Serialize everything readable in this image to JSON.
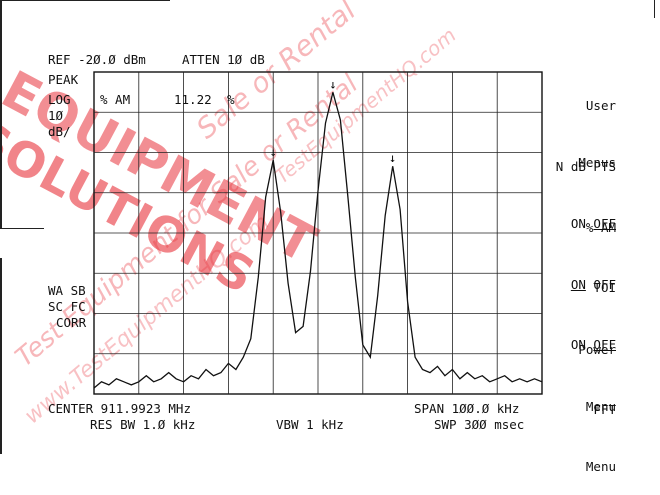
{
  "header": {
    "ref_level": "REF -2Ø.Ø dBm",
    "atten": "ATTEN 1Ø dB",
    "detector": "PEAK",
    "scale_lines": [
      "LOG",
      "1Ø",
      "dB/"
    ]
  },
  "marker_readout": {
    "label": "% AM",
    "value": "11.22",
    "unit": "%"
  },
  "left_annotations": {
    "line1": "WA SB",
    "line2": "SC FC",
    "line3": "CORR"
  },
  "footer": {
    "center": "CENTER 911.9923 MHz",
    "res_bw": "RES BW 1.Ø kHz",
    "vbw": "VBW 1 kHz",
    "span": "SPAN 1ØØ.Ø kHz",
    "sweep": "SWP 3ØØ msec"
  },
  "softkeys": [
    {
      "line1": "User",
      "line2": "Menus",
      "underline": ""
    },
    {
      "line1": "N dB PTS",
      "line2_pre": "ON ",
      "line2_ul": "OFF",
      "line2_post": ""
    },
    {
      "line1": "% AM",
      "line2_pre": "",
      "line2_ul": "ON",
      "line2_post": " OFF"
    },
    {
      "line1": "TOI",
      "line2_pre": "ON ",
      "line2_ul": "OFF",
      "line2_post": ""
    },
    {
      "line1": "Power",
      "line2": "Menu"
    },
    {
      "line1": "FFT",
      "line2": "Menu"
    }
  ],
  "watermark": {
    "text1": "EQUIPMENT",
    "text2": "SOLUTIONS",
    "text3": "Sale or Rental",
    "text4": "TestEquipmentHQ.com",
    "text5": "Test Equipment for Sale or Rental",
    "text6": "www.TestEquipmentHQ.com",
    "accent_color": "#e8323a"
  },
  "marker_glyph": "↓",
  "trace_points": [
    0.0,
    0.02,
    0.01,
    0.03,
    0.02,
    0.01,
    0.02,
    0.04,
    0.02,
    0.03,
    0.05,
    0.03,
    0.02,
    0.04,
    0.03,
    0.06,
    0.04,
    0.05,
    0.08,
    0.06,
    0.1,
    0.16,
    0.36,
    0.62,
    0.74,
    0.57,
    0.34,
    0.18,
    0.2,
    0.38,
    0.64,
    0.86,
    0.96,
    0.87,
    0.62,
    0.36,
    0.14,
    0.1,
    0.3,
    0.56,
    0.72,
    0.58,
    0.28,
    0.1,
    0.06,
    0.05,
    0.07,
    0.04,
    0.06,
    0.03,
    0.05,
    0.03,
    0.04,
    0.02,
    0.03,
    0.04,
    0.02,
    0.03,
    0.02,
    0.03,
    0.02
  ]
}
